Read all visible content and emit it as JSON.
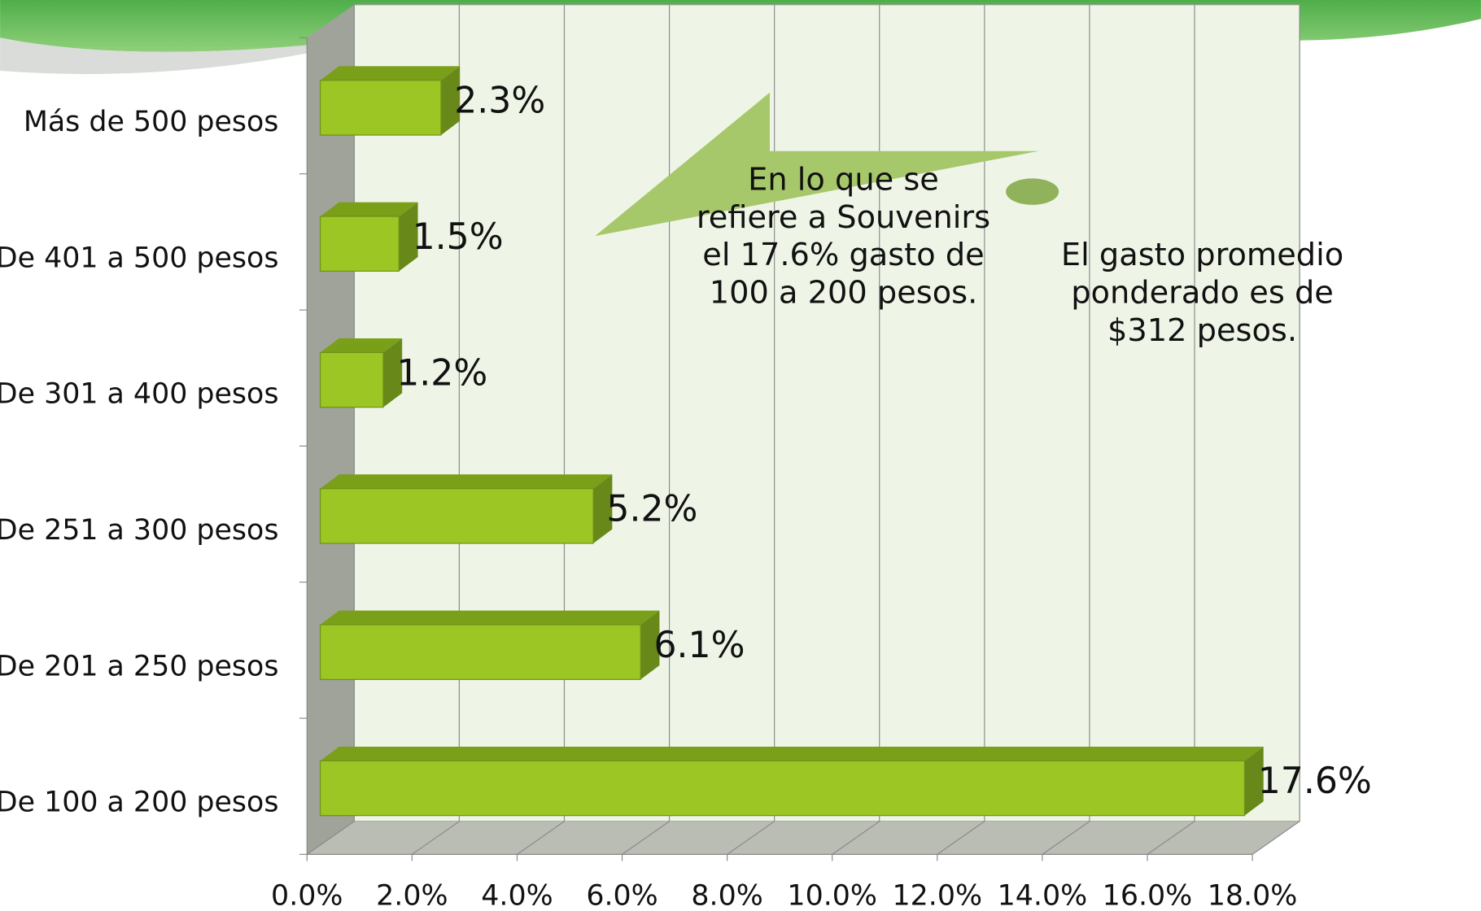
{
  "chart_data": {
    "type": "bar",
    "orientation": "horizontal",
    "categories": [
      "Más de 500 pesos",
      "De 401 a 500 pesos",
      "De 301 a 400 pesos",
      "De 251 a 300 pesos",
      "De 201 a 250 pesos",
      "De 100 a 200 pesos"
    ],
    "values": [
      2.3,
      1.5,
      1.2,
      5.2,
      6.1,
      17.6
    ],
    "value_labels": [
      "2.3%",
      "1.5%",
      "1.2%",
      "5.2%",
      "6.1%",
      "17.6%"
    ],
    "color": "#9bc623",
    "xlim": [
      0,
      18
    ],
    "xticks": [
      {
        "value": 0,
        "label": "0.0%"
      },
      {
        "value": 2,
        "label": "2.0%"
      },
      {
        "value": 4,
        "label": "4.0%"
      },
      {
        "value": 6,
        "label": "6.0%"
      },
      {
        "value": 8,
        "label": "8.0%"
      },
      {
        "value": 10,
        "label": "10.0%"
      },
      {
        "value": 12,
        "label": "12.0%"
      },
      {
        "value": 14,
        "label": "14.0%"
      },
      {
        "value": 16,
        "label": "16.0%"
      },
      {
        "value": 18,
        "label": "18.0%"
      }
    ],
    "grid": true,
    "annotations": [
      [
        "En lo que se",
        "refiere a Souvenirs",
        "el 17.6% gasto de",
        "100 a 200 pesos."
      ],
      [
        "El gasto promedio",
        "ponderado es de",
        "$312 pesos."
      ]
    ]
  }
}
